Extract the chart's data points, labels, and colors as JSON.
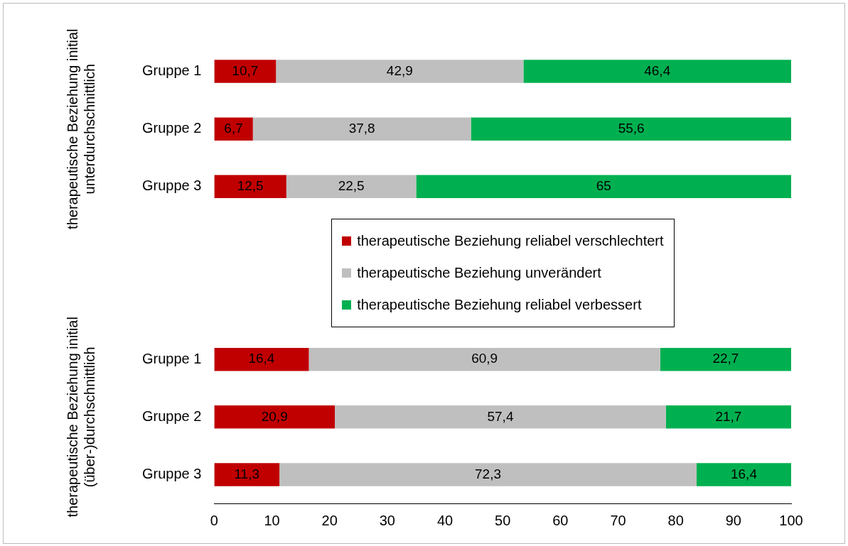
{
  "chart_data": {
    "type": "bar",
    "orientation": "horizontal",
    "stacked": true,
    "grid": false,
    "legend": "center",
    "categories": [
      "Gruppe 1",
      "Gruppe 2",
      "Gruppe 3",
      null,
      null,
      "Gruppe 1",
      "Gruppe 2",
      "Gruppe 3"
    ],
    "series": [
      {
        "name": "therapeutische Beziehung reliabel verschlechtert",
        "color": "#c00000",
        "values": [
          10.7,
          6.7,
          12.5,
          null,
          null,
          16.4,
          20.9,
          11.3
        ],
        "value_labels": [
          "10,7",
          "6,7",
          "12,5",
          null,
          null,
          "16,4",
          "20,9",
          "11,3"
        ]
      },
      {
        "name": "therapeutische Beziehung unverändert",
        "color": "#bfbfbf",
        "values": [
          42.9,
          37.8,
          22.5,
          null,
          null,
          60.9,
          57.4,
          72.3
        ],
        "value_labels": [
          "42,9",
          "37,8",
          "22,5",
          null,
          null,
          "60,9",
          "57,4",
          "72,3"
        ]
      },
      {
        "name": "therapeutische Beziehung reliabel verbessert",
        "color": "#00b050",
        "values": [
          46.4,
          55.6,
          65,
          null,
          null,
          22.7,
          21.7,
          16.4
        ],
        "value_labels": [
          "46,4",
          "55,6",
          "65",
          null,
          null,
          "22,7",
          "21,7",
          "16,4"
        ]
      }
    ],
    "xlim": [
      0,
      100
    ],
    "xticks": [
      0,
      10,
      20,
      30,
      40,
      50,
      60,
      70,
      80,
      90,
      100
    ],
    "annotations": [
      "therapeutische Beziehung initial unterdurchschnittlich",
      "therapeutische Beziehung initial (über-)durchschnittlich"
    ]
  }
}
